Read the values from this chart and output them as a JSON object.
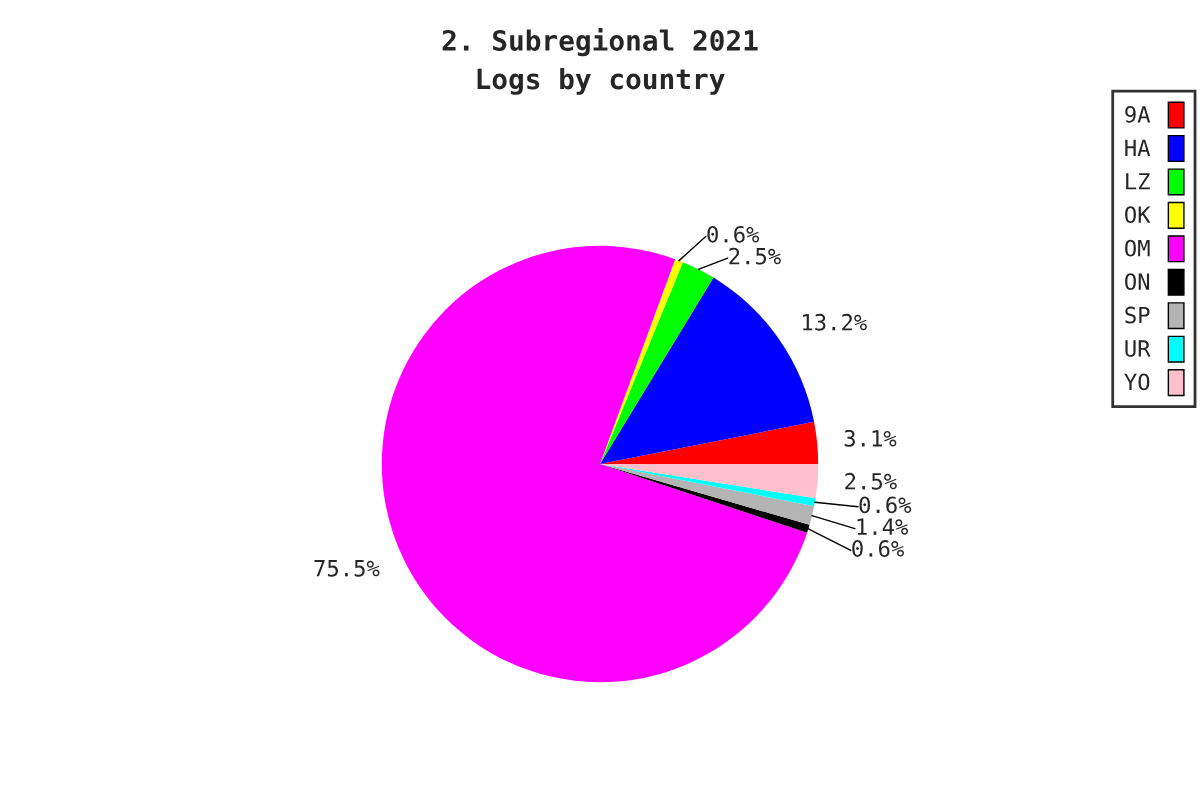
{
  "chart_data": {
    "type": "pie",
    "title": "2. Subregional 2021",
    "subtitle": "Logs by country",
    "categories": [
      "9A",
      "HA",
      "LZ",
      "OK",
      "OM",
      "ON",
      "SP",
      "UR",
      "YO"
    ],
    "values": [
      3.1,
      13.2,
      2.5,
      0.6,
      75.5,
      0.6,
      1.4,
      0.6,
      2.5
    ],
    "value_labels": [
      "3.1%",
      "13.2%",
      "2.5%",
      "0.6%",
      "75.5%",
      "0.6%",
      "1.4%",
      "0.6%",
      "2.5%"
    ],
    "colors": [
      "#ff0000",
      "#0000ff",
      "#00ff00",
      "#ffff00",
      "#ff00ff",
      "#000000",
      "#b4b4b4",
      "#00ffff",
      "#ffc0cb"
    ],
    "legend": "right"
  }
}
